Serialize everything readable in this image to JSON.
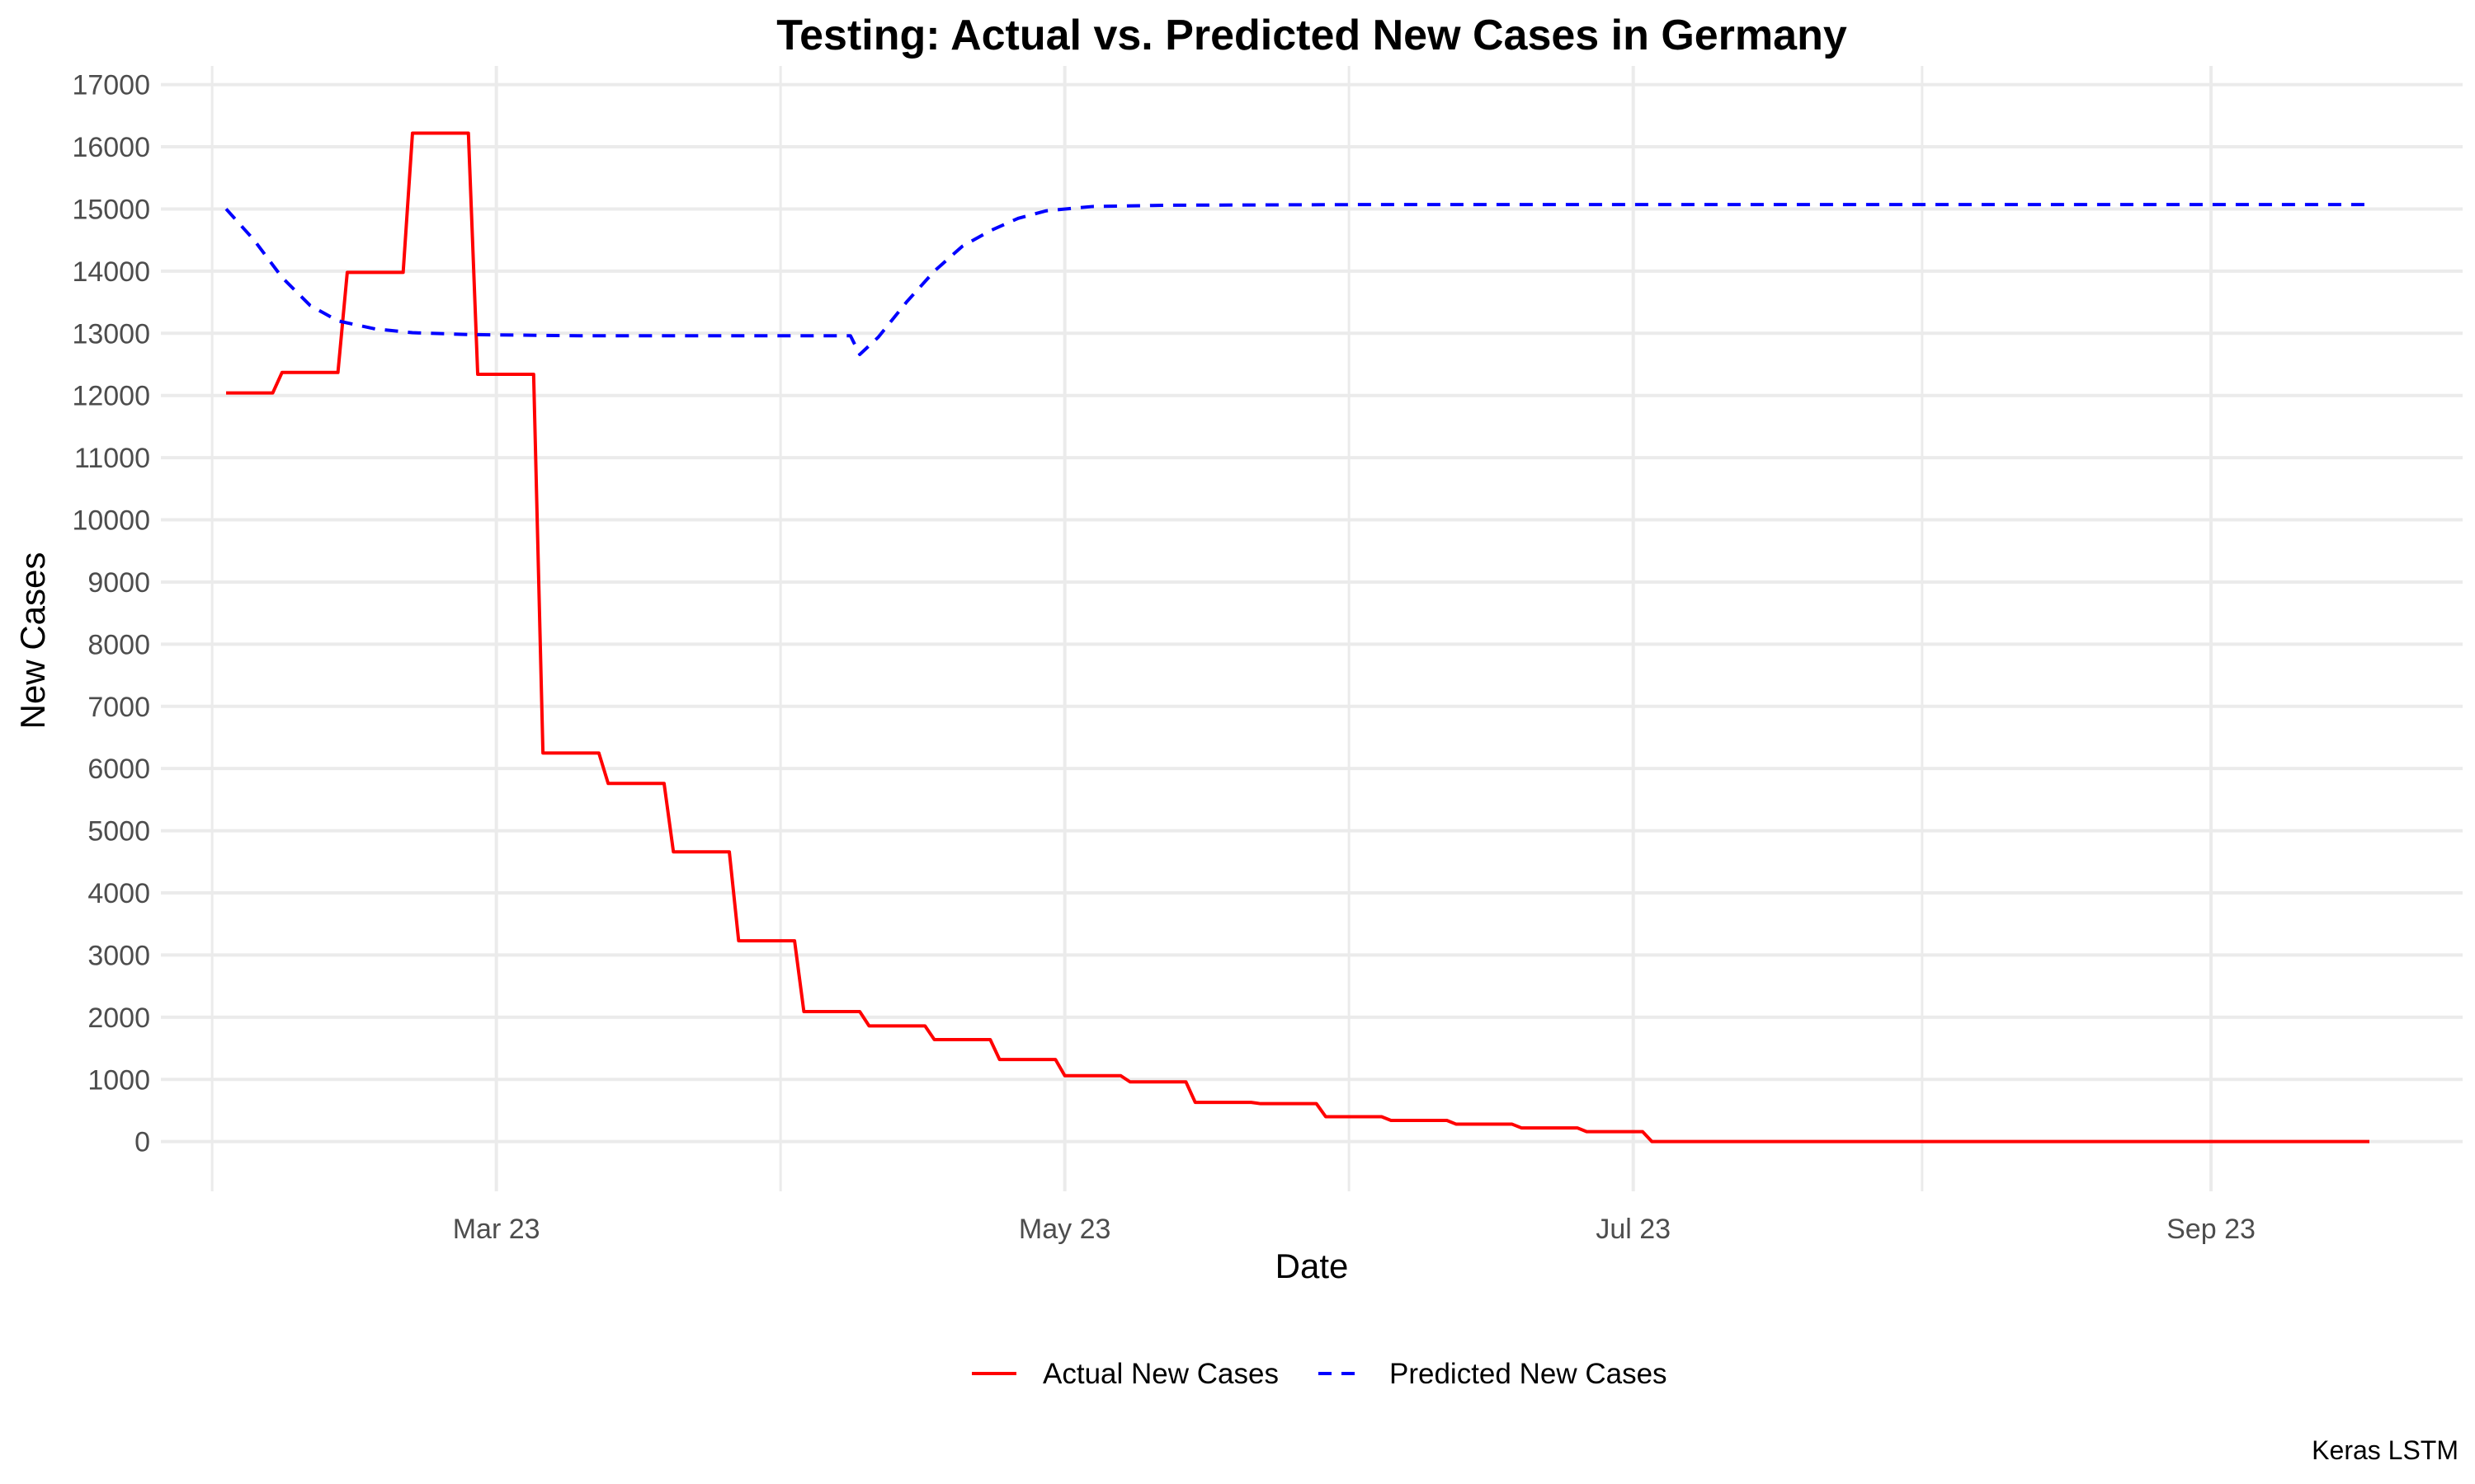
{
  "chart_data": {
    "type": "line",
    "title": "Testing: Actual vs. Predicted New Cases in Germany",
    "xlabel": "Date",
    "ylabel": "New Cases",
    "caption": "Keras LSTM",
    "xlim": [
      "2023-01-24",
      "2023-09-28"
    ],
    "ylim": [
      -800,
      17300
    ],
    "x_ticks": [
      {
        "date": "2023-03-01",
        "label": "Mar 23"
      },
      {
        "date": "2023-05-01",
        "label": "May 23"
      },
      {
        "date": "2023-07-01",
        "label": "Jul 23"
      },
      {
        "date": "2023-09-01",
        "label": "Sep 23"
      }
    ],
    "y_ticks": [
      0,
      1000,
      2000,
      3000,
      4000,
      5000,
      6000,
      7000,
      8000,
      9000,
      10000,
      11000,
      12000,
      13000,
      14000,
      15000,
      16000,
      17000
    ],
    "grid": true,
    "legend_position": "bottom",
    "series": [
      {
        "name": "Actual New Cases",
        "color": "#ff0000",
        "style": "solid",
        "points": [
          [
            "2023-01-31",
            12040
          ],
          [
            "2023-02-05",
            12040
          ],
          [
            "2023-02-06",
            12370
          ],
          [
            "2023-02-12",
            12370
          ],
          [
            "2023-02-13",
            13980
          ],
          [
            "2023-02-19",
            13980
          ],
          [
            "2023-02-20",
            16220
          ],
          [
            "2023-02-26",
            16220
          ],
          [
            "2023-02-27",
            12340
          ],
          [
            "2023-03-05",
            12340
          ],
          [
            "2023-03-06",
            6250
          ],
          [
            "2023-03-12",
            6250
          ],
          [
            "2023-03-13",
            5760
          ],
          [
            "2023-03-19",
            5760
          ],
          [
            "2023-03-20",
            4660
          ],
          [
            "2023-03-26",
            4660
          ],
          [
            "2023-03-27",
            3230
          ],
          [
            "2023-04-02",
            3230
          ],
          [
            "2023-04-03",
            2090
          ],
          [
            "2023-04-09",
            2090
          ],
          [
            "2023-04-10",
            1860
          ],
          [
            "2023-04-16",
            1860
          ],
          [
            "2023-04-17",
            1640
          ],
          [
            "2023-04-23",
            1640
          ],
          [
            "2023-04-24",
            1320
          ],
          [
            "2023-04-30",
            1320
          ],
          [
            "2023-05-01",
            1060
          ],
          [
            "2023-05-07",
            1060
          ],
          [
            "2023-05-08",
            960
          ],
          [
            "2023-05-14",
            960
          ],
          [
            "2023-05-15",
            630
          ],
          [
            "2023-05-21",
            630
          ],
          [
            "2023-05-22",
            610
          ],
          [
            "2023-05-28",
            610
          ],
          [
            "2023-05-29",
            400
          ],
          [
            "2023-06-04",
            400
          ],
          [
            "2023-06-05",
            340
          ],
          [
            "2023-06-11",
            340
          ],
          [
            "2023-06-12",
            280
          ],
          [
            "2023-06-18",
            280
          ],
          [
            "2023-06-19",
            220
          ],
          [
            "2023-06-25",
            220
          ],
          [
            "2023-06-26",
            160
          ],
          [
            "2023-07-02",
            160
          ],
          [
            "2023-07-03",
            0
          ],
          [
            "2023-09-18",
            0
          ]
        ]
      },
      {
        "name": "Predicted New Cases",
        "color": "#0000ff",
        "style": "dashed",
        "points": [
          [
            "2023-01-31",
            15000
          ],
          [
            "2023-02-03",
            14500
          ],
          [
            "2023-02-06",
            13900
          ],
          [
            "2023-02-09",
            13450
          ],
          [
            "2023-02-12",
            13200
          ],
          [
            "2023-02-16",
            13070
          ],
          [
            "2023-02-20",
            13010
          ],
          [
            "2023-02-26",
            12980
          ],
          [
            "2023-03-10",
            12960
          ],
          [
            "2023-03-25",
            12960
          ],
          [
            "2023-04-08",
            12960
          ],
          [
            "2023-04-09",
            12660
          ],
          [
            "2023-04-11",
            12940
          ],
          [
            "2023-04-14",
            13500
          ],
          [
            "2023-04-17",
            14000
          ],
          [
            "2023-04-20",
            14400
          ],
          [
            "2023-04-23",
            14650
          ],
          [
            "2023-04-26",
            14850
          ],
          [
            "2023-04-29",
            14970
          ],
          [
            "2023-05-04",
            15040
          ],
          [
            "2023-05-12",
            15060
          ],
          [
            "2023-06-01",
            15070
          ],
          [
            "2023-07-15",
            15070
          ],
          [
            "2023-09-18",
            15070
          ]
        ]
      }
    ]
  }
}
